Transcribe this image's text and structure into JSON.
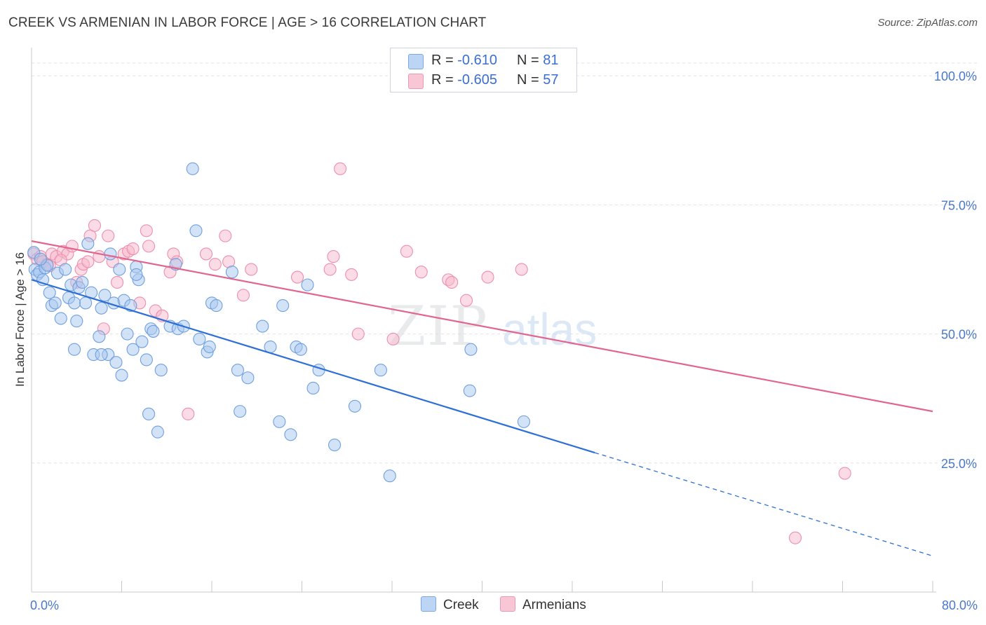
{
  "title": "CREEK VS ARMENIAN IN LABOR FORCE | AGE > 16 CORRELATION CHART",
  "source": "Source: ZipAtlas.com",
  "watermark": {
    "zip": "ZIP",
    "atlas": "atlas"
  },
  "legend": {
    "rows": [
      {
        "r_label": "R =",
        "r_value": "-0.610",
        "n_label": "N =",
        "n_value": "81"
      },
      {
        "r_label": "R =",
        "r_value": "-0.605",
        "n_label": "N =",
        "n_value": "57"
      }
    ]
  },
  "colors": {
    "creek_fill": "#a8c8f0",
    "creek_stroke": "#6f9fdf",
    "creek_line": "#2e6fd6",
    "armenian_fill": "#f7b8cb",
    "armenian_stroke": "#ec8fab",
    "armenian_line": "#e2658f",
    "tick_text": "#4a78c9",
    "grid": "#e3e3e3"
  },
  "chart_data": {
    "type": "scatter",
    "title": "CREEK VS ARMENIAN IN LABOR FORCE | AGE > 16 CORRELATION CHART",
    "xlabel": "",
    "ylabel": "In Labor Force | Age > 16",
    "xlim": [
      0,
      80
    ],
    "ylim": [
      0,
      105
    ],
    "x_tick_labels": [
      "0.0%",
      "80.0%"
    ],
    "y_tick_values": [
      25,
      50,
      75,
      100
    ],
    "y_tick_labels": [
      "25.0%",
      "50.0%",
      "75.0%",
      "100.0%"
    ],
    "grid": "horizontal dashed",
    "legend_position": "top-center",
    "series": [
      {
        "name": "Creek",
        "r": -0.61,
        "n": 81,
        "trend": {
          "x_start": 0,
          "y_start": 60.5,
          "x_solid_end": 50,
          "y_solid_end": 27.0,
          "x_end": 80,
          "y_end": 7.0
        },
        "points": [
          [
            0.3,
            62.5
          ],
          [
            0.5,
            61.5
          ],
          [
            0.7,
            62
          ],
          [
            1.0,
            60.5
          ],
          [
            1.2,
            62.8
          ],
          [
            1.4,
            63.3
          ],
          [
            1.6,
            58
          ],
          [
            1.8,
            55.5
          ],
          [
            2.1,
            56
          ],
          [
            2.3,
            61.8
          ],
          [
            2.6,
            53
          ],
          [
            3.0,
            62.5
          ],
          [
            3.3,
            57
          ],
          [
            3.5,
            59.5
          ],
          [
            3.8,
            56
          ],
          [
            4.0,
            52.5
          ],
          [
            4.2,
            59
          ],
          [
            4.5,
            60
          ],
          [
            4.8,
            56
          ],
          [
            5.0,
            67.5
          ],
          [
            5.3,
            58
          ],
          [
            5.5,
            46
          ],
          [
            6.0,
            49.5
          ],
          [
            6.2,
            55
          ],
          [
            6.5,
            57.5
          ],
          [
            6.8,
            46
          ],
          [
            7.0,
            65.5
          ],
          [
            7.3,
            56
          ],
          [
            7.5,
            44.5
          ],
          [
            7.8,
            62.5
          ],
          [
            8.0,
            42
          ],
          [
            8.2,
            56.5
          ],
          [
            8.5,
            50
          ],
          [
            8.8,
            55.5
          ],
          [
            9.0,
            47
          ],
          [
            9.3,
            63
          ],
          [
            9.5,
            60.5
          ],
          [
            9.8,
            48.5
          ],
          [
            10.2,
            45
          ],
          [
            10.4,
            34.5
          ],
          [
            10.6,
            51
          ],
          [
            10.8,
            50.5
          ],
          [
            11.2,
            31
          ],
          [
            11.5,
            43
          ],
          [
            12.3,
            51.5
          ],
          [
            12.8,
            63.5
          ],
          [
            13.0,
            51
          ],
          [
            13.5,
            51.5
          ],
          [
            14.3,
            82
          ],
          [
            14.6,
            70
          ],
          [
            14.9,
            49
          ],
          [
            15.6,
            46.5
          ],
          [
            15.8,
            47.5
          ],
          [
            16.0,
            56
          ],
          [
            16.4,
            55.5
          ],
          [
            17.8,
            62
          ],
          [
            18.3,
            43
          ],
          [
            18.5,
            35
          ],
          [
            19.2,
            41.5
          ],
          [
            20.5,
            51.5
          ],
          [
            21.2,
            47.5
          ],
          [
            22.0,
            33
          ],
          [
            22.3,
            55.5
          ],
          [
            23.0,
            30.5
          ],
          [
            23.5,
            47.5
          ],
          [
            23.9,
            47
          ],
          [
            24.5,
            59.5
          ],
          [
            25.0,
            39.5
          ],
          [
            25.5,
            43
          ],
          [
            26.9,
            28.5
          ],
          [
            28.7,
            36
          ],
          [
            31.0,
            43
          ],
          [
            31.8,
            22.5
          ],
          [
            38.9,
            39
          ],
          [
            39.0,
            47
          ],
          [
            43.7,
            33
          ],
          [
            0.2,
            65.8
          ],
          [
            0.8,
            64.5
          ],
          [
            6.2,
            46
          ],
          [
            9.3,
            61.5
          ],
          [
            3.8,
            47
          ]
        ]
      },
      {
        "name": "Armenians",
        "r": -0.605,
        "n": 57,
        "trend": {
          "x_start": 0,
          "y_start": 68.0,
          "x_end": 80,
          "y_end": 35.0
        },
        "points": [
          [
            0.2,
            65.5
          ],
          [
            0.5,
            64.5
          ],
          [
            0.8,
            65
          ],
          [
            1.0,
            64
          ],
          [
            1.4,
            63.5
          ],
          [
            1.8,
            65.5
          ],
          [
            2.2,
            65
          ],
          [
            2.8,
            66
          ],
          [
            3.2,
            65.5
          ],
          [
            3.6,
            67
          ],
          [
            4.0,
            60
          ],
          [
            4.4,
            62.5
          ],
          [
            4.6,
            63.5
          ],
          [
            5.0,
            64
          ],
          [
            5.2,
            69
          ],
          [
            5.6,
            71
          ],
          [
            6.0,
            65
          ],
          [
            6.4,
            51
          ],
          [
            6.8,
            69
          ],
          [
            7.2,
            64
          ],
          [
            7.6,
            60
          ],
          [
            8.2,
            65.5
          ],
          [
            8.6,
            66
          ],
          [
            9.0,
            66.5
          ],
          [
            9.6,
            56
          ],
          [
            10.2,
            70
          ],
          [
            10.4,
            67
          ],
          [
            11.0,
            54.5
          ],
          [
            11.6,
            53.5
          ],
          [
            12.3,
            62
          ],
          [
            12.6,
            65.5
          ],
          [
            12.9,
            64
          ],
          [
            13.9,
            34.5
          ],
          [
            15.5,
            65.5
          ],
          [
            16.3,
            63.5
          ],
          [
            17.2,
            69
          ],
          [
            17.5,
            64
          ],
          [
            18.8,
            57.5
          ],
          [
            19.5,
            62.5
          ],
          [
            23.6,
            61
          ],
          [
            26.5,
            62.5
          ],
          [
            26.8,
            65
          ],
          [
            27.4,
            82
          ],
          [
            28.4,
            61.5
          ],
          [
            29.0,
            50
          ],
          [
            32.1,
            49
          ],
          [
            33.3,
            66
          ],
          [
            34.6,
            62
          ],
          [
            37.0,
            60.5
          ],
          [
            37.3,
            60
          ],
          [
            38.6,
            56.5
          ],
          [
            40.5,
            61
          ],
          [
            43.5,
            62.5
          ],
          [
            67.8,
            10.5
          ],
          [
            72.2,
            23
          ],
          [
            1.6,
            63.2
          ],
          [
            2.6,
            64.3
          ]
        ]
      }
    ]
  }
}
